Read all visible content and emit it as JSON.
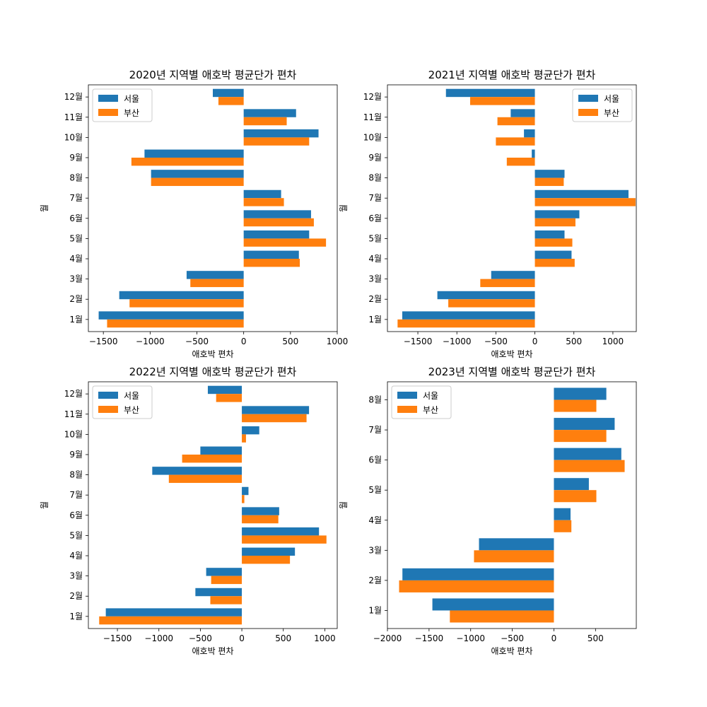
{
  "colors": {
    "seoul": "#1f77b4",
    "busan": "#ff7f0e"
  },
  "chart_data": [
    {
      "type": "bar",
      "orientation": "horizontal",
      "title": "2020년 지역별 애호박 평균단가 편차",
      "xlabel": "애호박 편차",
      "ylabel": "월",
      "categories": [
        "1월",
        "2월",
        "3월",
        "4월",
        "5월",
        "6월",
        "7월",
        "8월",
        "9월",
        "10월",
        "11월",
        "12월"
      ],
      "series": [
        {
          "name": "서울",
          "values": [
            -1550,
            -1330,
            -610,
            590,
            700,
            720,
            400,
            -990,
            -1060,
            800,
            560,
            -330
          ]
        },
        {
          "name": "부산",
          "values": [
            -1460,
            -1220,
            -570,
            600,
            880,
            750,
            430,
            -990,
            -1200,
            700,
            460,
            -270
          ]
        }
      ],
      "xlim": [
        -1660,
        1000
      ],
      "xticks": [
        -1500,
        -1000,
        -500,
        0,
        500,
        1000
      ],
      "xtick_labels": [
        "−1500",
        "−1000",
        "−500",
        "0",
        "500",
        "1000"
      ],
      "legend": "upper left"
    },
    {
      "type": "bar",
      "orientation": "horizontal",
      "title": "2021년 지역별 애호박 평균단가 편차",
      "xlabel": "애호박 편차",
      "ylabel": "월",
      "categories": [
        "1월",
        "2월",
        "3월",
        "4월",
        "5월",
        "6월",
        "7월",
        "8월",
        "9월",
        "10월",
        "11월",
        "12월"
      ],
      "series": [
        {
          "name": "서울",
          "values": [
            -1700,
            -1250,
            -560,
            470,
            380,
            570,
            1200,
            380,
            -40,
            -140,
            -310,
            -1140
          ]
        },
        {
          "name": "부산",
          "values": [
            -1760,
            -1110,
            -700,
            510,
            480,
            520,
            1290,
            370,
            -360,
            -500,
            -480,
            -830
          ]
        }
      ],
      "xlim": [
        -1890,
        1300
      ],
      "xticks": [
        -1500,
        -1000,
        -500,
        0,
        500,
        1000
      ],
      "xtick_labels": [
        "−1500",
        "−1000",
        "−500",
        "0",
        "500",
        "1000"
      ],
      "legend": "upper right"
    },
    {
      "type": "bar",
      "orientation": "horizontal",
      "title": "2022년 지역별 애호박 평균단가 편차",
      "xlabel": "애호박 편차",
      "ylabel": "월",
      "categories": [
        "1월",
        "2월",
        "3월",
        "4월",
        "5월",
        "6월",
        "7월",
        "8월",
        "9월",
        "10월",
        "11월",
        "12월"
      ],
      "series": [
        {
          "name": "서울",
          "values": [
            -1640,
            -560,
            -430,
            640,
            930,
            450,
            80,
            -1080,
            -500,
            210,
            810,
            -410
          ]
        },
        {
          "name": "부산",
          "values": [
            -1720,
            -380,
            -370,
            580,
            1020,
            440,
            30,
            -880,
            -720,
            50,
            780,
            -310
          ]
        }
      ],
      "xlim": [
        -1850,
        1150
      ],
      "xticks": [
        -1500,
        -1000,
        -500,
        0,
        500,
        1000
      ],
      "xtick_labels": [
        "−1500",
        "−1000",
        "−500",
        "0",
        "500",
        "1000"
      ],
      "legend": "upper left"
    },
    {
      "type": "bar",
      "orientation": "horizontal",
      "title": "2023년 지역별 애호박 평균단가 편차",
      "xlabel": "애호박 편차",
      "ylabel": "월",
      "categories": [
        "1월",
        "2월",
        "3월",
        "4월",
        "5월",
        "6월",
        "7월",
        "8월"
      ],
      "series": [
        {
          "name": "서울",
          "values": [
            -1460,
            -1820,
            -900,
            200,
            420,
            810,
            730,
            630
          ]
        },
        {
          "name": "부산",
          "values": [
            -1250,
            -1860,
            -960,
            210,
            510,
            850,
            630,
            510
          ]
        }
      ],
      "xlim": [
        -2000,
        990
      ],
      "xticks": [
        -2000,
        -1500,
        -1000,
        -500,
        0,
        500
      ],
      "xtick_labels": [
        "−2000",
        "−1500",
        "−1000",
        "−500",
        "0",
        "500"
      ],
      "legend": "upper left"
    }
  ]
}
